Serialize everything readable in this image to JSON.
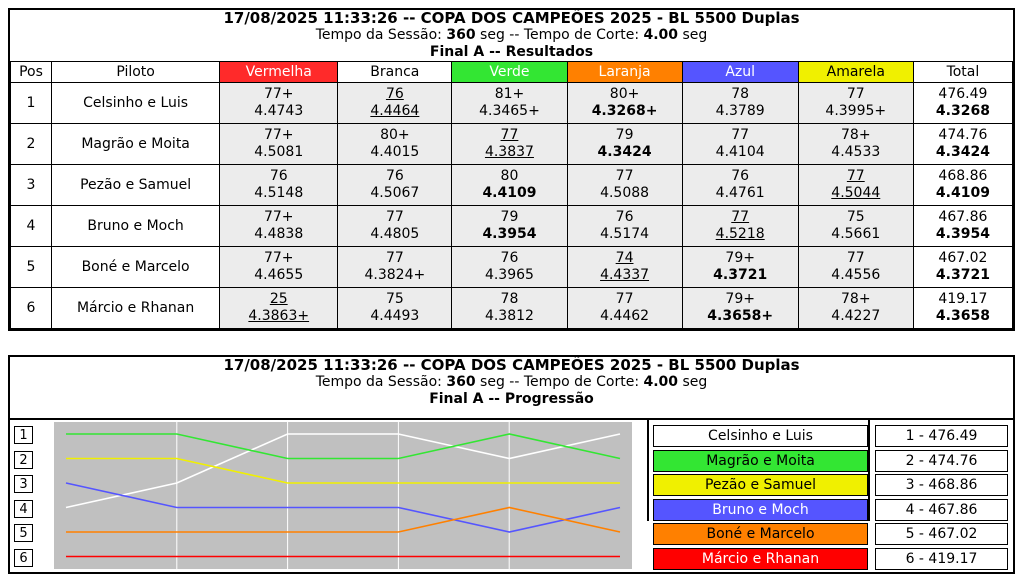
{
  "header": {
    "title": "17/08/2025 11:33:26 -- COPA DOS CAMPEÕES 2025 - BL 5500 Duplas",
    "session_label": "Tempo da Sessão:",
    "session_value": "360",
    "session_unit": "seg",
    "sep": "--",
    "cut_label": "Tempo de Corte:",
    "cut_value": "4.00",
    "cut_unit": "seg",
    "final": "Final A",
    "results_sub": "Resultados",
    "progress_sub": "Progressão"
  },
  "columns": [
    {
      "label": "Pos",
      "color": ""
    },
    {
      "label": "Piloto",
      "color": ""
    },
    {
      "label": "Vermelha",
      "color": "#ff2a2a",
      "text_color": "#ffffff"
    },
    {
      "label": "Branca",
      "color": "#ffffff",
      "text_color": "#000000"
    },
    {
      "label": "Verde",
      "color": "#33e633",
      "text_color": "#ffffff"
    },
    {
      "label": "Laranja",
      "color": "#ff8000",
      "text_color": "#ffffff"
    },
    {
      "label": "Azul",
      "color": "#5555ff",
      "text_color": "#ffffff"
    },
    {
      "label": "Amarela",
      "color": "#f0f000",
      "text_color": "#000000"
    },
    {
      "label": "Total",
      "color": "",
      "text_color": "#000000"
    }
  ],
  "rows": [
    {
      "pos": "1",
      "pilot": "Celsinho e Luis",
      "cells": [
        {
          "laps": "77+",
          "time": "4.4743",
          "u": false,
          "b": false
        },
        {
          "laps": "76",
          "time": "4.4464",
          "u": true,
          "b": false
        },
        {
          "laps": "81+",
          "time": "4.3465+",
          "u": false,
          "b": false
        },
        {
          "laps": "80+",
          "time": "4.3268+",
          "u": false,
          "b": true
        },
        {
          "laps": "78",
          "time": "4.3789",
          "u": false,
          "b": false
        },
        {
          "laps": "77",
          "time": "4.3995+",
          "u": false,
          "b": false
        }
      ],
      "total": "476.49",
      "best": "4.3268"
    },
    {
      "pos": "2",
      "pilot": "Magrão e Moita",
      "cells": [
        {
          "laps": "77+",
          "time": "4.5081",
          "u": false,
          "b": false
        },
        {
          "laps": "80+",
          "time": "4.4015",
          "u": false,
          "b": false
        },
        {
          "laps": "77",
          "time": "4.3837",
          "u": true,
          "b": false
        },
        {
          "laps": "79",
          "time": "4.3424",
          "u": false,
          "b": true
        },
        {
          "laps": "77",
          "time": "4.4104",
          "u": false,
          "b": false
        },
        {
          "laps": "78+",
          "time": "4.4533",
          "u": false,
          "b": false
        }
      ],
      "total": "474.76",
      "best": "4.3424"
    },
    {
      "pos": "3",
      "pilot": "Pezão e Samuel",
      "cells": [
        {
          "laps": "76",
          "time": "4.5148",
          "u": false,
          "b": false
        },
        {
          "laps": "76",
          "time": "4.5067",
          "u": false,
          "b": false
        },
        {
          "laps": "80",
          "time": "4.4109",
          "u": false,
          "b": true
        },
        {
          "laps": "77",
          "time": "4.5088",
          "u": false,
          "b": false
        },
        {
          "laps": "76",
          "time": "4.4761",
          "u": false,
          "b": false
        },
        {
          "laps": "77",
          "time": "4.5044",
          "u": true,
          "b": false
        }
      ],
      "total": "468.86",
      "best": "4.4109"
    },
    {
      "pos": "4",
      "pilot": "Bruno e Moch",
      "cells": [
        {
          "laps": "77+",
          "time": "4.4838",
          "u": false,
          "b": false
        },
        {
          "laps": "77",
          "time": "4.4805",
          "u": false,
          "b": false
        },
        {
          "laps": "79",
          "time": "4.3954",
          "u": false,
          "b": true
        },
        {
          "laps": "76",
          "time": "4.5174",
          "u": false,
          "b": false
        },
        {
          "laps": "77",
          "time": "4.5218",
          "u": true,
          "b": false
        },
        {
          "laps": "75",
          "time": "4.5661",
          "u": false,
          "b": false
        }
      ],
      "total": "467.86",
      "best": "4.3954"
    },
    {
      "pos": "5",
      "pilot": "Boné e Marcelo",
      "cells": [
        {
          "laps": "77+",
          "time": "4.4655",
          "u": false,
          "b": false
        },
        {
          "laps": "77",
          "time": "4.3824+",
          "u": false,
          "b": false
        },
        {
          "laps": "76",
          "time": "4.3965",
          "u": false,
          "b": false
        },
        {
          "laps": "74",
          "time": "4.4337",
          "u": true,
          "b": false
        },
        {
          "laps": "79+",
          "time": "4.3721",
          "u": false,
          "b": true
        },
        {
          "laps": "77",
          "time": "4.4556",
          "u": false,
          "b": false
        }
      ],
      "total": "467.02",
      "best": "4.3721"
    },
    {
      "pos": "6",
      "pilot": "Márcio e Rhanan",
      "cells": [
        {
          "laps": "25",
          "time": "4.3863+",
          "u": true,
          "b": false
        },
        {
          "laps": "75",
          "time": "4.4493",
          "u": false,
          "b": false
        },
        {
          "laps": "78",
          "time": "4.3812",
          "u": false,
          "b": false
        },
        {
          "laps": "77",
          "time": "4.4462",
          "u": false,
          "b": false
        },
        {
          "laps": "79+",
          "time": "4.3658+",
          "u": false,
          "b": true
        },
        {
          "laps": "78+",
          "time": "4.4227",
          "u": false,
          "b": false
        }
      ],
      "total": "419.17",
      "best": "4.3658"
    }
  ],
  "progression": {
    "positions": [
      "1",
      "2",
      "3",
      "4",
      "5",
      "6"
    ],
    "legend": [
      {
        "name": "Celsinho e Luis",
        "bg": "#ffffff",
        "fg": "#000000"
      },
      {
        "name": "Magrão e Moita",
        "bg": "#33e633",
        "fg": "#000000"
      },
      {
        "name": "Pezão e Samuel",
        "bg": "#f0f000",
        "fg": "#000000"
      },
      {
        "name": "Bruno e Moch",
        "bg": "#5555ff",
        "fg": "#ffffff"
      },
      {
        "name": "Boné e Marcelo",
        "bg": "#ff8000",
        "fg": "#000000"
      },
      {
        "name": "Márcio e Rhanan",
        "bg": "#ff0000",
        "fg": "#ffffff"
      }
    ],
    "totals": [
      "1 - 476.49",
      "2 - 474.76",
      "3 - 468.86",
      "4 - 467.86",
      "5 - 467.02",
      "6 - 419.17"
    ],
    "series": [
      {
        "name": "Celsinho e Luis",
        "color": "#ffffff",
        "positions": [
          4,
          3,
          1,
          1,
          2,
          1
        ]
      },
      {
        "name": "Magrão e Moita",
        "color": "#33e633",
        "positions": [
          1,
          1,
          2,
          2,
          1,
          2
        ]
      },
      {
        "name": "Pezão e Samuel",
        "color": "#f0f000",
        "positions": [
          2,
          2,
          3,
          3,
          3,
          3
        ]
      },
      {
        "name": "Bruno e Moch",
        "color": "#5555ff",
        "positions": [
          3,
          4,
          4,
          4,
          5,
          4
        ]
      },
      {
        "name": "Boné e Marcelo",
        "color": "#ff8000",
        "positions": [
          5,
          5,
          5,
          5,
          4,
          5
        ]
      },
      {
        "name": "Márcio e Rhanan",
        "color": "#ff0000",
        "positions": [
          6,
          6,
          6,
          6,
          6,
          6
        ]
      }
    ]
  }
}
